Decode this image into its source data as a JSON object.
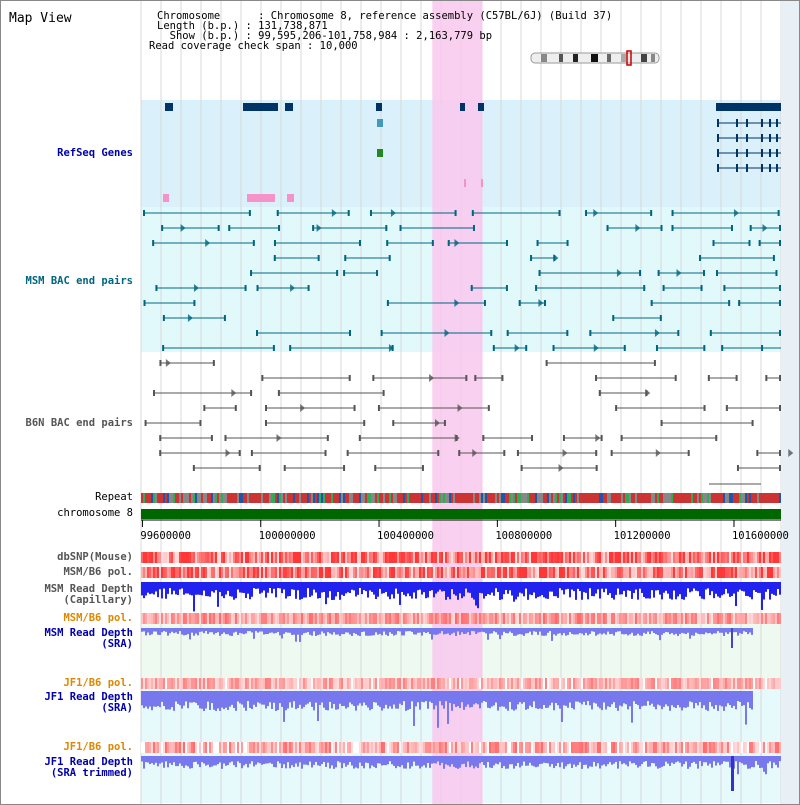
{
  "header": {
    "title": "Map View",
    "chromosome": "Chromosome      : Chromosome 8, reference assembly (C57BL/6J) (Build 37)",
    "length": "Length (b.p.) : 131,738,871",
    "show": "  Show (b.p.) : 99,595,206-101,758,984 : 2,163,779 bp",
    "coverage": "Read coverage check span : 10,000"
  },
  "tracks": {
    "refseq": "RefSeq Genes",
    "msm_bac": "MSM BAC end pairs",
    "b6n_bac": "B6N BAC end pairs",
    "repeat": "Repeat",
    "chromosome": "chromosome 8",
    "dbsnp": "dbSNP(Mouse)",
    "msm_pol": "MSM/B6 pol.",
    "msm_depth_cap_1": "MSM Read Depth",
    "msm_depth_cap_2": "(Capillary)",
    "msm_pol2": "MSM/B6 pol.",
    "msm_depth_sra_1": "MSM Read Depth",
    "msm_depth_sra_2": "(SRA)",
    "jf1_pol": "JF1/B6 pol.",
    "jf1_depth_1": "JF1 Read Depth",
    "jf1_depth_2": "(SRA)",
    "jf1_pol2": "JF1/B6 pol.",
    "jf1_trim_1": "JF1 Read Depth",
    "jf1_trim_2": "(SRA trimmed)"
  },
  "axis": {
    "ticks": [
      "99600000",
      "100000000",
      "100400000",
      "100800000",
      "101200000",
      "101600000"
    ],
    "tick_values": [
      99600000,
      100000000,
      100400000,
      100800000,
      101200000,
      101600000
    ],
    "range": [
      99595206,
      101758984
    ],
    "highlight": [
      100580000,
      100750000
    ]
  },
  "colors": {
    "gene": "#003366",
    "bac_msm": "#006680",
    "bac_b6n": "#555555",
    "highlight": "#f9c8ee",
    "chrom": "#006600",
    "polymorph": "#ff4444",
    "depth_cap": "#2222ee",
    "depth_sra": "#7777ee",
    "label_blue": "#0000aa",
    "label_orange": "#dd8800"
  }
}
